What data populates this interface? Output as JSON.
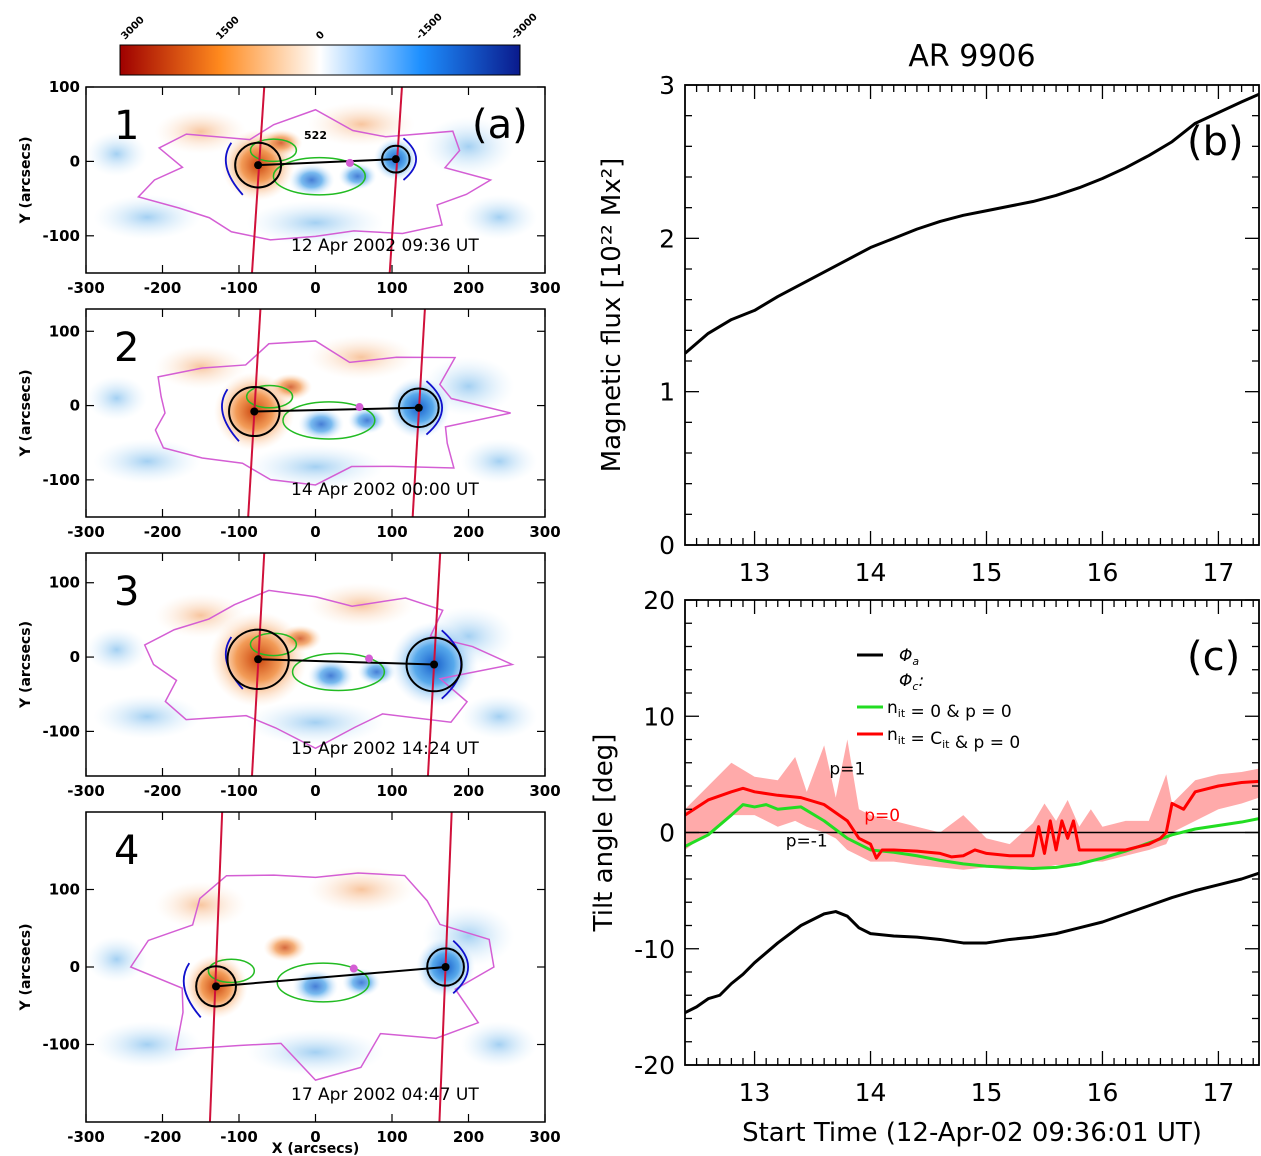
{
  "colorbar": {
    "ticks": [
      "3000",
      "1500",
      "0",
      "-1500",
      "-3000"
    ],
    "colors": [
      "#9e0000",
      "#ff8a1e",
      "#ffffff",
      "#1e90ff",
      "#0a1a8c"
    ]
  },
  "panel_a": {
    "label": "(a)",
    "xlabel": "X (arcsecs)",
    "ylabel": "Y (arcsecs)",
    "contour_label": "522",
    "magnetograms": [
      {
        "number": "1",
        "timestamp": "12 Apr 2002 09:36 UT",
        "yticks": [
          100,
          0,
          -100
        ],
        "ymin": -150,
        "ymax": 100,
        "pos_center": [
          -75,
          -5
        ],
        "neg_center": [
          105,
          3
        ],
        "pos_r": 30,
        "neg_r": 18
      },
      {
        "number": "2",
        "timestamp": "14 Apr 2002 00:00 UT",
        "yticks": [
          100,
          0,
          -100
        ],
        "ymin": -150,
        "ymax": 130,
        "pos_center": [
          -80,
          -8
        ],
        "neg_center": [
          135,
          -3
        ],
        "pos_r": 33,
        "neg_r": 26
      },
      {
        "number": "3",
        "timestamp": "15 Apr 2002 14:24 UT",
        "yticks": [
          100,
          0,
          -100
        ],
        "ymin": -160,
        "ymax": 140,
        "pos_center": [
          -75,
          -3
        ],
        "neg_center": [
          155,
          -10
        ],
        "pos_r": 40,
        "neg_r": 36
      },
      {
        "number": "4",
        "timestamp": "17 Apr 2002 04:47 UT",
        "yticks": [
          100,
          0,
          -100
        ],
        "ymin": -200,
        "ymax": 200,
        "pos_center": [
          -130,
          -25
        ],
        "neg_center": [
          170,
          0
        ],
        "pos_r": 26,
        "neg_r": 24
      }
    ],
    "xticks": [
      -300,
      -200,
      -100,
      0,
      100,
      200,
      300
    ]
  },
  "chart_data": [
    {
      "type": "line",
      "panel": "(b)",
      "title": "AR 9906",
      "ylabel": "Magnetic flux [10²² Mx²]",
      "xlim": [
        12.4,
        17.35
      ],
      "ylim": [
        0,
        3
      ],
      "xticks": [
        13,
        14,
        15,
        16,
        17
      ],
      "yticks": [
        0,
        1,
        2,
        3
      ],
      "series": [
        {
          "color": "#000000",
          "x": [
            12.4,
            12.6,
            12.8,
            13.0,
            13.2,
            13.4,
            13.6,
            13.8,
            14.0,
            14.2,
            14.4,
            14.6,
            14.8,
            15.0,
            15.2,
            15.4,
            15.6,
            15.8,
            16.0,
            16.2,
            16.4,
            16.6,
            16.8,
            17.0,
            17.2,
            17.35
          ],
          "y": [
            1.25,
            1.38,
            1.47,
            1.53,
            1.62,
            1.7,
            1.78,
            1.86,
            1.94,
            2.0,
            2.06,
            2.11,
            2.15,
            2.18,
            2.21,
            2.24,
            2.28,
            2.33,
            2.39,
            2.46,
            2.54,
            2.63,
            2.75,
            2.82,
            2.89,
            2.94
          ]
        }
      ]
    },
    {
      "type": "line",
      "panel": "(c)",
      "ylabel": "Tilt angle [deg]",
      "xlabel": "Start Time (12-Apr-02 09:36:01 UT)",
      "xlim": [
        12.4,
        17.35
      ],
      "ylim": [
        -20,
        20
      ],
      "xticks": [
        13,
        14,
        15,
        16,
        17
      ],
      "yticks": [
        -20,
        -10,
        0,
        10,
        20
      ],
      "legend": {
        "position": "top-center",
        "header": "Φc:"
      },
      "annotations": [
        {
          "text": "p=1",
          "x": 13.8,
          "y": 5.0,
          "color": "#000000"
        },
        {
          "text": "p=0",
          "x": 14.1,
          "y": 1.0,
          "color": "#ff0000"
        },
        {
          "text": "p=-1",
          "x": 13.45,
          "y": -1.2,
          "color": "#000000"
        }
      ],
      "series": [
        {
          "name": "Φa",
          "color": "#000000",
          "x": [
            12.4,
            12.5,
            12.6,
            12.7,
            12.8,
            12.9,
            13.0,
            13.2,
            13.4,
            13.6,
            13.7,
            13.8,
            13.9,
            14.0,
            14.2,
            14.4,
            14.6,
            14.8,
            15.0,
            15.2,
            15.4,
            15.6,
            15.8,
            16.0,
            16.2,
            16.4,
            16.6,
            16.8,
            17.0,
            17.2,
            17.35
          ],
          "y": [
            -15.5,
            -15.0,
            -14.3,
            -14.0,
            -13.0,
            -12.2,
            -11.2,
            -9.5,
            -8.0,
            -7.0,
            -6.8,
            -7.2,
            -8.2,
            -8.7,
            -8.9,
            -9.0,
            -9.2,
            -9.5,
            -9.5,
            -9.2,
            -9.0,
            -8.7,
            -8.2,
            -7.7,
            -7.0,
            -6.3,
            -5.6,
            -5.0,
            -4.5,
            -4.0,
            -3.5
          ]
        },
        {
          "name": "n_it = 0  & p = 0",
          "color": "#22dd22",
          "x": [
            12.4,
            12.6,
            12.8,
            12.9,
            13.0,
            13.1,
            13.2,
            13.4,
            13.6,
            13.8,
            14.0,
            14.2,
            14.4,
            14.6,
            14.8,
            15.0,
            15.2,
            15.4,
            15.6,
            15.8,
            16.0,
            16.2,
            16.4,
            16.6,
            16.8,
            17.0,
            17.2,
            17.35
          ],
          "y": [
            -1.2,
            -0.2,
            1.5,
            2.4,
            2.2,
            2.4,
            2.0,
            2.2,
            1.0,
            -0.5,
            -1.5,
            -1.7,
            -2.0,
            -2.4,
            -2.7,
            -2.9,
            -3.0,
            -3.1,
            -3.0,
            -2.7,
            -2.2,
            -1.6,
            -0.9,
            -0.2,
            0.3,
            0.6,
            0.9,
            1.2
          ]
        },
        {
          "name": "n_it = C_it & p = 0",
          "color": "#ff0000",
          "x": [
            12.4,
            12.6,
            12.8,
            12.9,
            13.0,
            13.2,
            13.4,
            13.6,
            13.8,
            13.9,
            14.0,
            14.05,
            14.1,
            14.2,
            14.4,
            14.6,
            14.7,
            14.8,
            14.9,
            15.0,
            15.2,
            15.4,
            15.45,
            15.5,
            15.55,
            15.6,
            15.65,
            15.7,
            15.75,
            15.8,
            16.0,
            16.2,
            16.4,
            16.5,
            16.55,
            16.6,
            16.7,
            16.8,
            17.0,
            17.2,
            17.35
          ],
          "y": [
            1.5,
            2.8,
            3.5,
            3.8,
            3.5,
            3.2,
            3.0,
            2.4,
            1.0,
            -0.5,
            -1.0,
            -2.2,
            -1.5,
            -1.5,
            -1.6,
            -1.8,
            -2.1,
            -2.0,
            -1.5,
            -1.8,
            -2.0,
            -2.0,
            0.5,
            -1.8,
            1.0,
            -1.5,
            1.0,
            -0.5,
            1.0,
            -1.5,
            -1.5,
            -1.5,
            -1.0,
            -0.5,
            0.0,
            2.5,
            2.0,
            3.5,
            4.0,
            4.3,
            4.4
          ]
        },
        {
          "color": "#ffaaaa",
          "band": true,
          "x": [
            12.4,
            12.6,
            12.8,
            13.0,
            13.2,
            13.35,
            13.45,
            13.6,
            13.7,
            13.8,
            13.9,
            14.0,
            14.2,
            14.4,
            14.6,
            14.8,
            15.0,
            15.2,
            15.4,
            15.5,
            15.6,
            15.7,
            15.8,
            15.9,
            16.0,
            16.2,
            16.4,
            16.55,
            16.6,
            16.8,
            17.0,
            17.2,
            17.35
          ],
          "upper": [
            2.0,
            4.0,
            6.0,
            4.8,
            4.5,
            6.5,
            3.5,
            7.5,
            3.0,
            8.0,
            2.0,
            1.5,
            1.0,
            0.5,
            0.0,
            1.5,
            -0.5,
            -1.0,
            0.8,
            2.5,
            1.0,
            2.8,
            0.5,
            2.0,
            0.5,
            1.0,
            1.0,
            5.0,
            2.5,
            4.5,
            5.0,
            5.2,
            5.5
          ],
          "lower": [
            -1.5,
            0.0,
            1.5,
            1.5,
            0.5,
            1.0,
            0.5,
            0.0,
            -0.5,
            -1.5,
            -2.0,
            -2.5,
            -2.5,
            -2.8,
            -3.0,
            -3.2,
            -3.0,
            -3.2,
            -3.0,
            -3.0,
            -2.8,
            -2.8,
            -2.5,
            -2.5,
            -2.5,
            -2.0,
            -1.5,
            -1.0,
            0.0,
            1.0,
            2.0,
            2.5,
            3.0
          ]
        }
      ]
    }
  ]
}
